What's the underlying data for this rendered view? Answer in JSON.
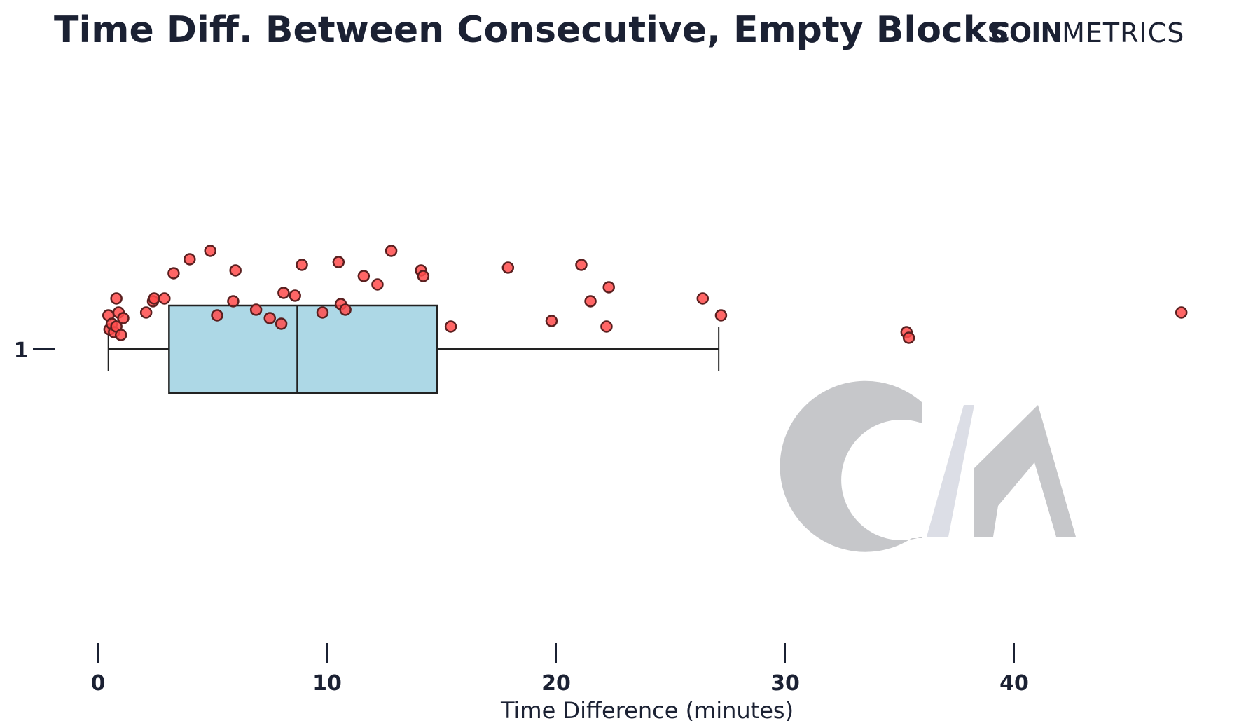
{
  "header": {
    "title": "Time Diff. Between Consecutive, Empty Blocks",
    "brand_bold": "COIN",
    "brand_light": "METRICS"
  },
  "watermark": "CM",
  "colors": {
    "text": "#1b2133",
    "box_fill": "#add8e6",
    "box_stroke": "#222222",
    "point_fill": "#ff4b4b",
    "point_stroke": "#5a1f1f",
    "watermark_gray": "#c6c7ca",
    "watermark_light": "#dcdee6"
  },
  "chart_data": {
    "type": "box",
    "orientation": "horizontal",
    "title": "Time Diff. Between Consecutive, Empty Blocks",
    "xlabel": "Time Difference (minutes)",
    "ylabel": "",
    "xlim": [
      -0.5,
      48.5
    ],
    "xticks": [
      0,
      10,
      20,
      30,
      40
    ],
    "category_label": "1",
    "grid": false,
    "box": {
      "whisker_low": 0.45,
      "q1": 3.1,
      "median": 8.7,
      "q3": 14.8,
      "whisker_high": 27.1
    },
    "points": [
      {
        "x": 0.45,
        "y": -0.12
      },
      {
        "x": 0.5,
        "y": -0.07
      },
      {
        "x": 0.6,
        "y": -0.09
      },
      {
        "x": 0.7,
        "y": -0.06
      },
      {
        "x": 0.8,
        "y": -0.08
      },
      {
        "x": 0.9,
        "y": -0.13
      },
      {
        "x": 0.8,
        "y": -0.18
      },
      {
        "x": 1.0,
        "y": -0.05
      },
      {
        "x": 1.1,
        "y": -0.11
      },
      {
        "x": 2.1,
        "y": -0.13
      },
      {
        "x": 2.4,
        "y": -0.17
      },
      {
        "x": 2.45,
        "y": -0.18
      },
      {
        "x": 2.9,
        "y": -0.18
      },
      {
        "x": 3.3,
        "y": -0.27
      },
      {
        "x": 4.0,
        "y": -0.32
      },
      {
        "x": 4.9,
        "y": -0.35
      },
      {
        "x": 5.2,
        "y": -0.12
      },
      {
        "x": 6.0,
        "y": -0.28
      },
      {
        "x": 5.9,
        "y": -0.17
      },
      {
        "x": 6.9,
        "y": -0.14
      },
      {
        "x": 7.5,
        "y": -0.11
      },
      {
        "x": 8.0,
        "y": -0.09
      },
      {
        "x": 8.1,
        "y": -0.2
      },
      {
        "x": 8.6,
        "y": -0.19
      },
      {
        "x": 8.9,
        "y": -0.3
      },
      {
        "x": 9.8,
        "y": -0.13
      },
      {
        "x": 10.5,
        "y": -0.31
      },
      {
        "x": 10.6,
        "y": -0.16
      },
      {
        "x": 10.8,
        "y": -0.14
      },
      {
        "x": 11.6,
        "y": -0.26
      },
      {
        "x": 12.2,
        "y": -0.23
      },
      {
        "x": 12.8,
        "y": -0.35
      },
      {
        "x": 14.1,
        "y": -0.28
      },
      {
        "x": 14.2,
        "y": -0.26
      },
      {
        "x": 15.4,
        "y": -0.08
      },
      {
        "x": 17.9,
        "y": -0.29
      },
      {
        "x": 19.8,
        "y": -0.1
      },
      {
        "x": 21.1,
        "y": -0.3
      },
      {
        "x": 21.5,
        "y": -0.17
      },
      {
        "x": 22.2,
        "y": -0.08
      },
      {
        "x": 22.3,
        "y": -0.22
      },
      {
        "x": 26.4,
        "y": -0.18
      },
      {
        "x": 27.2,
        "y": -0.12
      },
      {
        "x": 35.3,
        "y": -0.06
      },
      {
        "x": 35.4,
        "y": -0.04
      },
      {
        "x": 47.3,
        "y": -0.13
      }
    ]
  }
}
